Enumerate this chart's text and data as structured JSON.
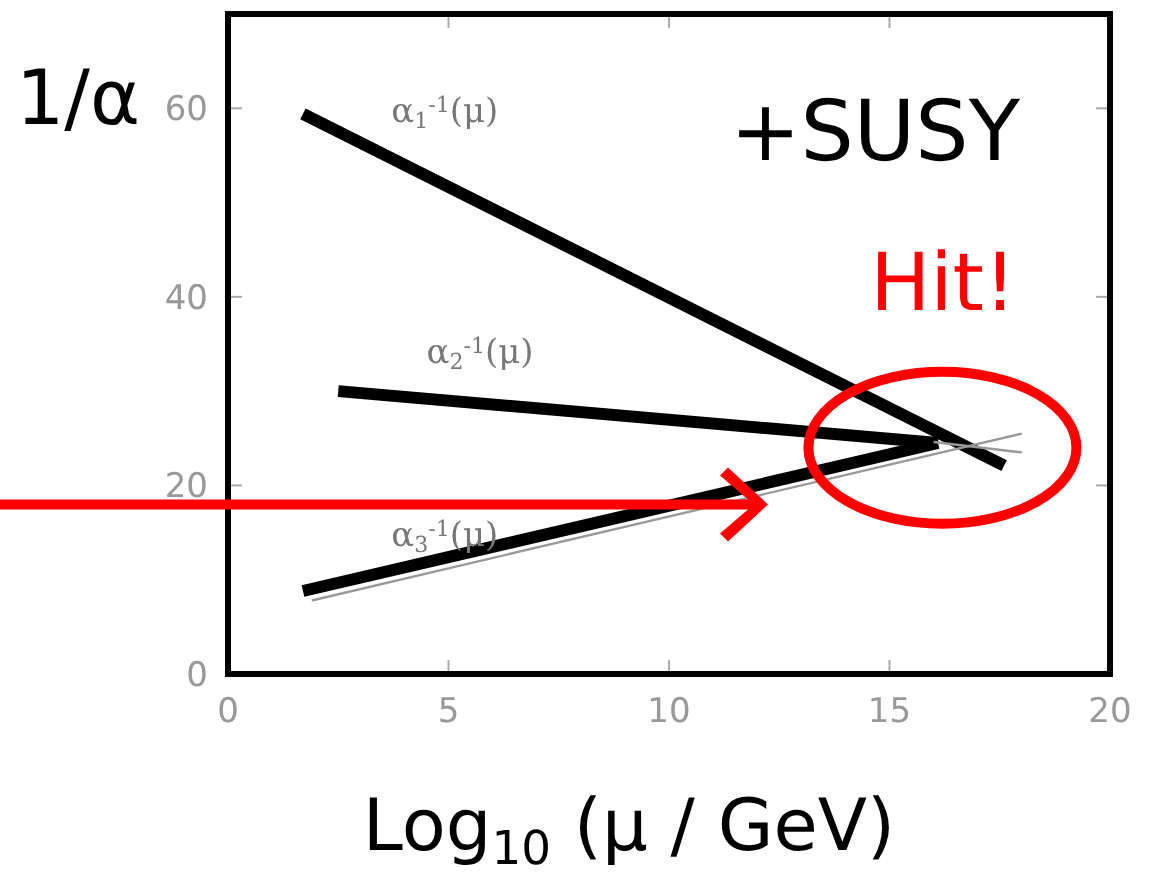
{
  "chart_data": {
    "type": "line",
    "ylabel": "1/α",
    "xlabel": "Log$_{10}$ (μ / GeV)",
    "annotations": [
      "+SUSY",
      "Hit!"
    ],
    "xlim": [
      0,
      20
    ],
    "ylim": [
      0,
      70
    ],
    "xticks": [
      0,
      5,
      10,
      15,
      20
    ],
    "yticks": [
      0,
      20,
      40,
      60
    ],
    "grid": false,
    "legend": false,
    "marker": "none",
    "line_style": "solid",
    "series": [
      {
        "name": "α$_{1}$$^{-1}$(μ)",
        "color": "#000000",
        "x": [
          1.7,
          17.6
        ],
        "values": [
          59.4,
          22.1
        ]
      },
      {
        "name": "α$_{2}$$^{-1}$(μ)",
        "color": "#000000",
        "x": [
          2.5,
          16.1
        ],
        "values": [
          30.0,
          24.5
        ]
      },
      {
        "name": "α$_{3}$$^{-1}$(μ)",
        "color": "#000000",
        "x": [
          1.7,
          16.1
        ],
        "values": [
          8.8,
          24.5
        ]
      },
      {
        "color": "#999999",
        "x": [
          1.9,
          18
        ],
        "values": [
          7.8,
          25.5
        ]
      },
      {
        "color": "#999999",
        "x": [
          16,
          18
        ],
        "values": [
          24.6,
          23.5
        ]
      }
    ]
  }
}
